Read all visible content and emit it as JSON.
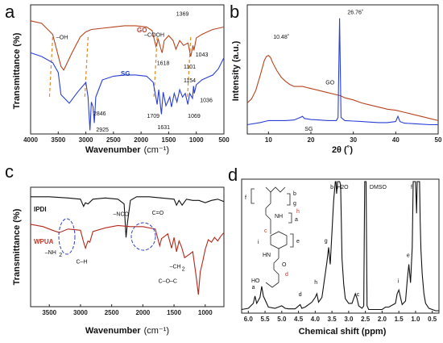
{
  "panels": {
    "a": {
      "label": "a"
    },
    "b": {
      "label": "b"
    },
    "c": {
      "label": "c"
    },
    "d": {
      "label": "d"
    }
  },
  "colors": {
    "go": "#b8441f",
    "sg": "#2a3fd6",
    "wpua": "#b5281c",
    "ipdi": "#111111",
    "nmr": "#111111"
  },
  "chart_data": [
    {
      "panel": "a",
      "type": "line",
      "xlabel": "Wavenumber",
      "xlabel_unit": "(cm⁻¹)",
      "ylabel": "Transmittance (%)",
      "xlim": [
        4000,
        500
      ],
      "x_ticks": [
        4000,
        3500,
        3000,
        2500,
        2000,
        1500,
        1000,
        500
      ],
      "legend_labels": {
        "go": "GO",
        "sg": "SG"
      },
      "series": [
        {
          "name": "GO",
          "color": "#b8441f",
          "x": [
            4000,
            3800,
            3600,
            3450,
            3400,
            3250,
            3100,
            3000,
            2900,
            2700,
            2500,
            2300,
            2100,
            1900,
            1800,
            1730,
            1690,
            1640,
            1618,
            1580,
            1500,
            1420,
            1369,
            1300,
            1230,
            1150,
            1101,
            1060,
            1043,
            1000,
            900,
            800,
            700,
            600,
            500
          ],
          "y": [
            9.2,
            9.0,
            8.1,
            5.5,
            5.2,
            6.6,
            7.9,
            8.3,
            8.5,
            8.6,
            8.7,
            8.8,
            8.8,
            8.7,
            8.4,
            7.1,
            7.7,
            6.9,
            6.6,
            7.6,
            8.0,
            7.6,
            6.9,
            7.6,
            7.2,
            7.4,
            6.3,
            7.2,
            6.8,
            7.8,
            8.1,
            8.3,
            8.5,
            8.6,
            8.7
          ]
        },
        {
          "name": "SG",
          "color": "#2a3fd6",
          "x": [
            4000,
            3800,
            3600,
            3500,
            3450,
            3300,
            3150,
            3000,
            2960,
            2925,
            2900,
            2870,
            2846,
            2820,
            2700,
            2500,
            2300,
            2100,
            1900,
            1780,
            1709,
            1680,
            1631,
            1600,
            1550,
            1480,
            1450,
            1400,
            1350,
            1300,
            1250,
            1200,
            1154,
            1120,
            1069,
            1050,
            1036,
            1000,
            900,
            800,
            700,
            600,
            500
          ],
          "y": [
            6.6,
            6.3,
            5.8,
            5.0,
            3.2,
            2.5,
            3.4,
            4.2,
            3.0,
            0.3,
            2.6,
            2.2,
            0.9,
            3.0,
            4.4,
            4.7,
            4.8,
            4.8,
            4.7,
            4.2,
            2.4,
            3.6,
            1.6,
            3.4,
            2.3,
            3.0,
            2.2,
            3.3,
            2.6,
            3.6,
            3.0,
            3.3,
            2.4,
            3.3,
            2.9,
            3.9,
            3.3,
            4.0,
            4.4,
            4.6,
            4.8,
            5.3,
            6.2
          ]
        }
      ],
      "annotations": [
        {
          "text": "–OH",
          "x": 3430,
          "y": 7.7
        },
        {
          "text": "–COOH",
          "x": 1760,
          "y": 7.9
        },
        {
          "text": "1369",
          "x": 1250,
          "y": 9.6
        },
        {
          "text": "1618",
          "x": 1600,
          "y": 5.6
        },
        {
          "text": "1101",
          "x": 1120,
          "y": 5.3
        },
        {
          "text": "1043",
          "x": 900,
          "y": 6.3
        },
        {
          "text": "2846",
          "x": 2750,
          "y": 1.5
        },
        {
          "text": "2925",
          "x": 2700,
          "y": 0.2
        },
        {
          "text": "1709",
          "x": 1780,
          "y": 1.3
        },
        {
          "text": "1631",
          "x": 1590,
          "y": 0.4
        },
        {
          "text": "1154",
          "x": 1120,
          "y": 4.2
        },
        {
          "text": "1069",
          "x": 1040,
          "y": 1.3
        },
        {
          "text": "1036",
          "x": 820,
          "y": 2.6
        }
      ],
      "dashed_guides_x": [
        3600,
        2960,
        1709,
        1101
      ]
    },
    {
      "panel": "b",
      "type": "line",
      "xlabel": "2θ (˚)",
      "ylabel": "Intensity (a.u.)",
      "xlim": [
        5,
        50
      ],
      "x_ticks": [
        10,
        20,
        30,
        40,
        50
      ],
      "legend_labels": {
        "go": "GO",
        "sg": "SG"
      },
      "series": [
        {
          "name": "GO",
          "color": "#b8441f",
          "x": [
            5,
            6,
            7,
            8,
            9,
            9.5,
            10,
            10.48,
            11,
            12,
            13,
            14,
            15,
            16,
            17,
            18,
            19,
            20,
            22,
            24,
            26,
            27,
            28,
            30,
            32,
            34,
            36,
            38,
            40,
            42,
            44,
            46,
            48,
            50
          ],
          "y": [
            3.0,
            3.4,
            4.2,
            5.6,
            7.1,
            7.5,
            7.6,
            7.4,
            6.9,
            6.1,
            5.5,
            5.1,
            4.8,
            4.6,
            4.6,
            4.6,
            4.5,
            4.4,
            4.2,
            4.0,
            3.8,
            3.7,
            3.5,
            3.3,
            3.0,
            2.8,
            2.6,
            2.4,
            2.3,
            2.1,
            1.9,
            1.7,
            1.5,
            1.3
          ]
        },
        {
          "name": "SG",
          "color": "#2a3fd6",
          "x": [
            5,
            8,
            10,
            12,
            14,
            16,
            17.5,
            18,
            18.5,
            20,
            22,
            24,
            26,
            26.4,
            26.76,
            27.1,
            28,
            30,
            32,
            34,
            36,
            38,
            40,
            40.5,
            41,
            42,
            44,
            46,
            48,
            50
          ],
          "y": [
            0.9,
            1.1,
            1.3,
            1.3,
            1.3,
            1.35,
            1.6,
            1.7,
            1.5,
            1.4,
            1.35,
            1.3,
            1.3,
            1.6,
            11.2,
            1.6,
            1.3,
            1.25,
            1.2,
            1.15,
            1.1,
            1.1,
            1.2,
            1.7,
            1.2,
            1.05,
            1.0,
            0.95,
            0.9,
            0.9
          ]
        }
      ],
      "annotations": [
        {
          "text": "10.48˚",
          "x": 13,
          "y": 9.2
        },
        {
          "text": "26.76˚",
          "x": 30.5,
          "y": 11.6
        },
        {
          "text": "GO",
          "x": 24.5,
          "y": 4.8
        },
        {
          "text": "SG",
          "x": 19.5,
          "y": 0.3
        }
      ],
      "ylim": [
        0,
        12.5
      ]
    },
    {
      "panel": "c",
      "type": "line",
      "xlabel": "Wavenumber",
      "xlabel_unit": "(cm⁻¹)",
      "ylabel": "Transmittance (%)",
      "xlim": [
        3800,
        700
      ],
      "x_ticks": [
        3500,
        3000,
        2500,
        2000,
        1500,
        1000
      ],
      "legend_labels": {
        "ipdi": "IPDI",
        "wpua": "WPUA"
      },
      "series": [
        {
          "name": "IPDI",
          "color": "#111111",
          "x": [
            3800,
            3500,
            3200,
            3000,
            2950,
            2920,
            2880,
            2800,
            2600,
            2400,
            2300,
            2270,
            2250,
            2200,
            2100,
            1900,
            1700,
            1500,
            1460,
            1420,
            1370,
            1300,
            1200,
            1100,
            1000,
            900,
            800,
            700
          ],
          "y": [
            9.2,
            9.2,
            9.1,
            9.0,
            8.4,
            8.7,
            8.6,
            9.0,
            9.1,
            9.0,
            8.6,
            5.8,
            6.9,
            8.9,
            9.2,
            9.2,
            9.1,
            9.0,
            8.5,
            8.9,
            8.5,
            9.0,
            8.9,
            8.9,
            8.7,
            8.9,
            9.0,
            8.8
          ]
        },
        {
          "name": "WPUA",
          "color": "#b5281c",
          "x": [
            3800,
            3600,
            3450,
            3340,
            3200,
            3000,
            2950,
            2920,
            2880,
            2850,
            2800,
            2600,
            2400,
            2200,
            2000,
            1800,
            1730,
            1700,
            1650,
            1600,
            1540,
            1500,
            1460,
            1420,
            1380,
            1330,
            1250,
            1200,
            1150,
            1110,
            1080,
            1040,
            1000,
            950,
            900,
            850,
            800,
            750,
            700
          ],
          "y": [
            6.9,
            6.7,
            6.4,
            6.2,
            6.5,
            6.4,
            5.4,
            4.9,
            5.5,
            5.4,
            6.3,
            6.6,
            6.8,
            6.7,
            6.7,
            6.5,
            5.1,
            5.7,
            5.9,
            6.1,
            4.9,
            5.8,
            4.6,
            5.5,
            5.0,
            4.1,
            4.4,
            4.6,
            2.7,
            1.0,
            2.9,
            3.8,
            4.8,
            5.6,
            5.4,
            5.8,
            5.5,
            5.9,
            6.2
          ]
        }
      ],
      "annotations": [
        {
          "text": "–NCO",
          "x": 2350,
          "y": 7.6
        },
        {
          "text": "C=O",
          "x": 1760,
          "y": 7.7
        },
        {
          "text": "–NH",
          "x": 3480,
          "y": 4.4
        },
        {
          "text": "2",
          "x": 3320,
          "y": 4.2
        },
        {
          "text": "C–H",
          "x": 2980,
          "y": 3.6
        },
        {
          "text": "–CH",
          "x": 1480,
          "y": 3.2
        },
        {
          "text": "2",
          "x": 1350,
          "y": 3.0
        },
        {
          "text": "C–O–C",
          "x": 1600,
          "y": 2.0
        }
      ],
      "ylim": [
        0,
        10
      ]
    },
    {
      "panel": "d",
      "type": "line",
      "xlabel": "Chemical shift (ppm)",
      "xlim": [
        6.2,
        0.3
      ],
      "x_ticks": [
        6.0,
        5.5,
        5.0,
        4.5,
        4.0,
        3.5,
        3.0,
        2.5,
        2.0,
        1.5,
        1.0,
        0.5
      ],
      "x_tick_labels": [
        "6.0",
        "5.5",
        "5.0",
        "4.5",
        "4.0",
        "3.5",
        "3.0",
        "2.5",
        "2.0",
        "1.5",
        "1.0",
        "0.5"
      ],
      "series": [
        {
          "name": "",
          "color": "#111111",
          "x": [
            6.2,
            6.0,
            5.85,
            5.8,
            5.75,
            5.65,
            5.6,
            5.55,
            5.4,
            5.2,
            5.0,
            4.9,
            4.8,
            4.6,
            4.45,
            4.4,
            4.3,
            4.1,
            4.0,
            3.95,
            3.9,
            3.8,
            3.65,
            3.6,
            3.55,
            3.5,
            3.45,
            3.4,
            3.38,
            3.36,
            3.33,
            3.3,
            3.27,
            3.24,
            3.22,
            3.2,
            3.15,
            3.1,
            3.0,
            2.9,
            2.8,
            2.75,
            2.7,
            2.6,
            2.55,
            2.52,
            2.5,
            2.48,
            2.45,
            2.4,
            2.2,
            2.0,
            1.9,
            1.8,
            1.6,
            1.55,
            1.5,
            1.45,
            1.4,
            1.3,
            1.25,
            1.2,
            1.15,
            1.1,
            1.07,
            1.05,
            1.03,
            1.0,
            0.97,
            0.95,
            0.93,
            0.9,
            0.88,
            0.86,
            0.84,
            0.8,
            0.75,
            0.7,
            0.6,
            0.5,
            0.4,
            0.3
          ],
          "y": [
            0.3,
            0.4,
            0.8,
            1.4,
            0.8,
            1.3,
            2.2,
            1.4,
            0.5,
            0.4,
            0.6,
            0.4,
            0.35,
            0.35,
            0.7,
            0.4,
            0.5,
            0.9,
            1.3,
            1.6,
            0.9,
            1.3,
            4.2,
            5.4,
            4.0,
            6.6,
            9.2,
            10.8,
            10.8,
            9.8,
            10.8,
            10.8,
            10.8,
            10.5,
            7.8,
            4.5,
            2.4,
            1.2,
            0.8,
            0.8,
            1.6,
            1.2,
            0.6,
            0.4,
            0.6,
            10.8,
            10.8,
            10.8,
            0.6,
            0.3,
            0.3,
            0.3,
            0.5,
            0.5,
            0.8,
            1.6,
            1.9,
            1.3,
            0.7,
            1.0,
            2.7,
            4.0,
            2.5,
            5.4,
            10.8,
            10.8,
            10.8,
            10.8,
            8.2,
            10.8,
            10.8,
            10.8,
            10.8,
            7.5,
            5.2,
            3.2,
            1.6,
            0.8,
            0.4,
            0.3,
            0.2,
            0.2
          ]
        }
      ],
      "annotations": [
        {
          "text": "a",
          "x": 5.85,
          "y": 2.0,
          "color": "#111"
        },
        {
          "text": "d",
          "x": 4.45,
          "y": 1.4,
          "color": "#c0392b"
        },
        {
          "text": "h",
          "x": 3.98,
          "y": 2.4,
          "color": "#c0392b"
        },
        {
          "text": "g",
          "x": 3.68,
          "y": 5.8,
          "color": "#111"
        },
        {
          "text": "b",
          "x": 3.5,
          "y": 10.2,
          "color": "#111"
        },
        {
          "text": "H2O",
          "x": 3.18,
          "y": 10.2,
          "color": "#111"
        },
        {
          "text": "DMSO",
          "x": 2.12,
          "y": 10.2,
          "color": "#111"
        },
        {
          "text": "c",
          "x": 2.72,
          "y": 1.4,
          "color": "#c0392b"
        },
        {
          "text": "i",
          "x": 1.52,
          "y": 2.5,
          "color": "#111"
        },
        {
          "text": "e",
          "x": 1.22,
          "y": 4.6,
          "color": "#111"
        },
        {
          "text": "f",
          "x": 1.12,
          "y": 10.2,
          "color": "#111"
        }
      ],
      "structure_labels": {
        "f": "f",
        "b": "b",
        "g": "g",
        "h": "h",
        "a": "a",
        "c": "c",
        "i": "i",
        "e": "e",
        "d": "d",
        "oh": "HO",
        "o": "O",
        "nh": "NH",
        "hn": "HN"
      },
      "ylim": [
        0,
        11
      ]
    }
  ]
}
